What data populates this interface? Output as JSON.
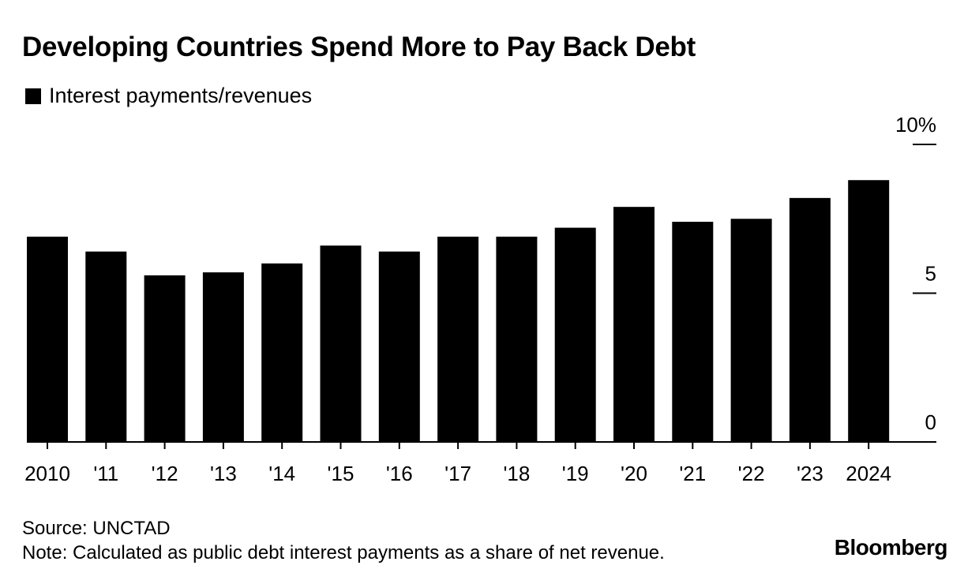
{
  "title": "Developing Countries Spend More to Pay Back Debt",
  "legend": {
    "label": "Interest payments/revenues"
  },
  "source": "Source: UNCTAD",
  "note": "Note: Calculated as public debt interest payments as a share of net revenue.",
  "brand": "Bloomberg",
  "chart_data": {
    "type": "bar",
    "title": "Developing Countries Spend More to Pay Back Debt",
    "xlabel": "",
    "ylabel": "Interest payments/revenues",
    "categories": [
      "2010",
      "'11",
      "'12",
      "'13",
      "'14",
      "'15",
      "'16",
      "'17",
      "'18",
      "'19",
      "'20",
      "'21",
      "'22",
      "'23",
      "2024"
    ],
    "series": [
      {
        "name": "Interest payments/revenues",
        "values": [
          6.9,
          6.4,
          5.6,
          5.7,
          6.0,
          6.6,
          6.4,
          6.9,
          6.9,
          7.2,
          7.9,
          7.4,
          7.5,
          8.2,
          8.8
        ]
      }
    ],
    "ylim": [
      0,
      10
    ],
    "yticks": [
      0,
      5,
      10
    ],
    "ytick_labels": [
      "0",
      "5",
      "10%"
    ],
    "y_axis_side": "right",
    "grid": false,
    "legend_position": "top-left",
    "bar_color": "#000000"
  }
}
